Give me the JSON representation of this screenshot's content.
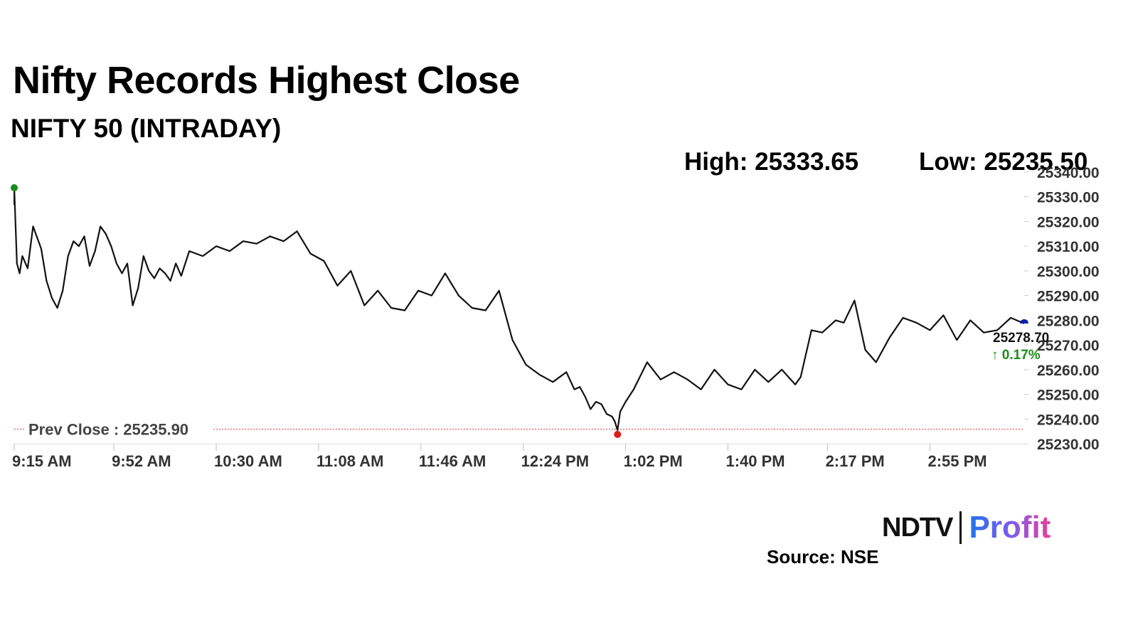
{
  "title": "Nifty Records Highest Close",
  "subtitle": "NIFTY 50 (INTRADAY)",
  "stats": {
    "high": "High: 25333.65",
    "low": "Low: 25235.50"
  },
  "prev_close_label": "Prev Close : 25235.90",
  "last_value": "25278.70",
  "last_change": "↑ 0.17%",
  "logo": {
    "part1": "NDTV",
    "part2": "Profit"
  },
  "source": "Source: NSE",
  "colors": {
    "line": "#111111",
    "prev_close": "#e23b3b",
    "high_dot": "#1a8c1a",
    "low_dot": "#e21b1b",
    "last_dot": "#0b1fa8",
    "change": "#1a8c1a"
  },
  "chart_data": {
    "type": "line",
    "title": "Nifty Records Highest Close",
    "subtitle": "NIFTY 50 (INTRADAY)",
    "xlabel": "",
    "ylabel": "",
    "ylim": [
      25230,
      25340
    ],
    "y_ticks": [
      "25340.00",
      "25330.00",
      "25320.00",
      "25310.00",
      "25300.00",
      "25290.00",
      "25280.00",
      "25270.00",
      "25260.00",
      "25250.00",
      "25240.00",
      "25230.00"
    ],
    "x_ticks": [
      "9:15 AM",
      "9:52 AM",
      "10:30 AM",
      "11:08 AM",
      "11:46 AM",
      "12:24 PM",
      "1:02 PM",
      "1:40 PM",
      "2:17 PM",
      "2:55 PM"
    ],
    "x_tick_minutes": [
      0,
      37,
      75,
      113,
      151,
      189,
      227,
      265,
      302,
      340
    ],
    "x_range_minutes": [
      0,
      375
    ],
    "prev_close": 25235.9,
    "high": {
      "minute": 0,
      "value": 25333.65
    },
    "low": {
      "minute": 224,
      "value": 25235.5
    },
    "last": {
      "minute": 375,
      "value": 25278.7,
      "change_pct": 0.17
    },
    "series": [
      {
        "name": "NIFTY 50",
        "x": [
          0,
          1,
          2,
          3,
          5,
          7,
          9,
          10,
          12,
          14,
          16,
          18,
          20,
          22,
          24,
          26,
          28,
          30,
          32,
          34,
          36,
          38,
          40,
          42,
          44,
          46,
          48,
          50,
          52,
          54,
          56,
          58,
          60,
          62,
          65,
          70,
          75,
          80,
          85,
          90,
          95,
          100,
          105,
          110,
          115,
          120,
          125,
          130,
          135,
          140,
          145,
          150,
          155,
          160,
          165,
          170,
          175,
          180,
          185,
          190,
          195,
          200,
          205,
          208,
          210,
          212,
          214,
          216,
          218,
          220,
          222,
          223,
          224,
          225,
          227,
          230,
          235,
          240,
          245,
          250,
          255,
          260,
          265,
          270,
          275,
          280,
          285,
          290,
          292,
          296,
          300,
          305,
          308,
          312,
          316,
          320,
          325,
          330,
          335,
          340,
          345,
          350,
          355,
          360,
          365,
          370,
          375
        ],
        "values": [
          25333.65,
          25303,
          25299,
          25306,
          25301,
          25318,
          25312,
          25309,
          25296,
          25289,
          25285,
          25292,
          25306,
          25312,
          25310,
          25314,
          25302,
          25308,
          25318,
          25315,
          25310,
          25303,
          25299,
          25303,
          25286,
          25293,
          25306,
          25300,
          25297,
          25301,
          25299,
          25296,
          25303,
          25298,
          25308,
          25306,
          25310,
          25308,
          25312,
          25311,
          25314,
          25312,
          25316,
          25307,
          25304,
          25294,
          25300,
          25286,
          25292,
          25285,
          25284,
          25292,
          25290,
          25299,
          25290,
          25285,
          25284,
          25292,
          25272,
          25262,
          25258,
          25255,
          25259,
          25252,
          25253,
          25249,
          25244,
          25247,
          25246,
          25242,
          25241,
          25239,
          25235.5,
          25243,
          25247,
          25252,
          25263,
          25256,
          25259,
          25256,
          25252,
          25260,
          25254,
          25252,
          25260,
          25255,
          25260,
          25254,
          25257,
          25276,
          25275,
          25280,
          25279,
          25288,
          25268,
          25263,
          25273,
          25281,
          25279,
          25276,
          25282,
          25272,
          25280,
          25275,
          25276,
          25281,
          25278.7
        ]
      }
    ]
  }
}
